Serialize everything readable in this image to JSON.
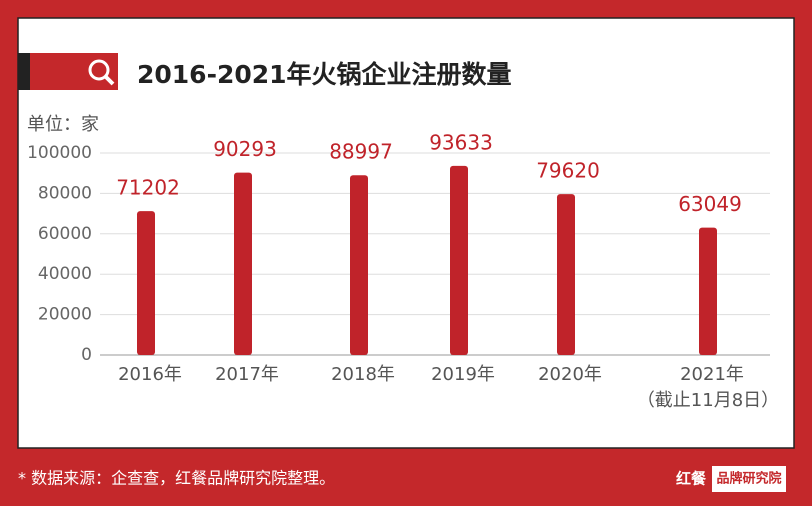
{
  "chart_data": {
    "type": "bar",
    "title": "2016-2021年火锅企业注册数量",
    "unit_label": "单位：家",
    "categories": [
      "2016年",
      "2017年",
      "2018年",
      "2019年",
      "2020年",
      "2021年"
    ],
    "category_note": "（截止11月8日）",
    "values": [
      71202,
      90293,
      88997,
      93633,
      79620,
      63049
    ],
    "color": "#c0232a",
    "ylim": [
      0,
      100000
    ],
    "yticks": [
      0,
      20000,
      40000,
      60000,
      80000,
      100000
    ],
    "grid": true
  },
  "footer": {
    "source": "* 数据来源：企查查，红餐品牌研究院整理。",
    "logo_mark": "红餐",
    "logo_text": "品牌研究院"
  }
}
